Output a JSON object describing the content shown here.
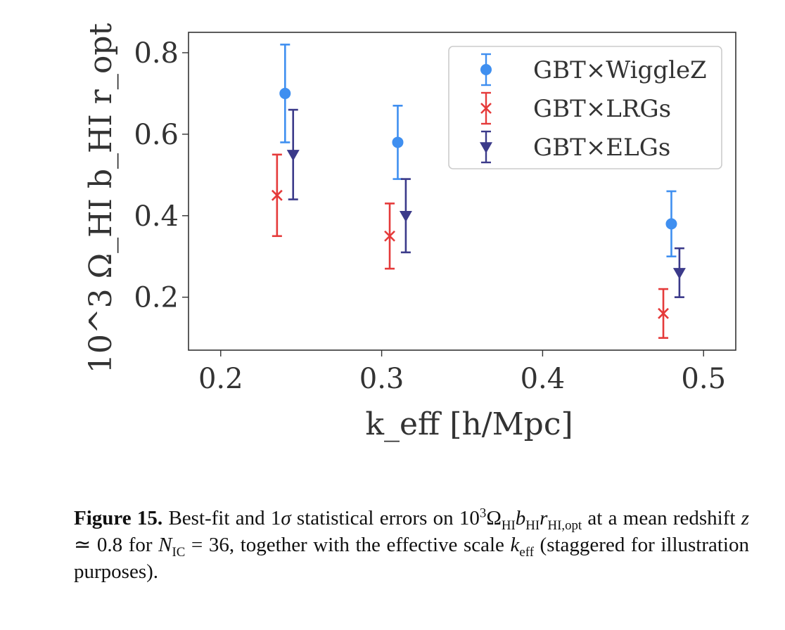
{
  "chart_data": {
    "type": "scatter",
    "title": "",
    "xlabel": "k_eff [h/Mpc]",
    "ylabel": "10^3 Ω_HI b_HI r_opt",
    "xlim": [
      0.18,
      0.52
    ],
    "ylim": [
      0.07,
      0.85
    ],
    "x_ticks": [
      0.2,
      0.3,
      0.4,
      0.5
    ],
    "x_tick_labels": [
      "0.2",
      "0.3",
      "0.4",
      "0.5"
    ],
    "y_ticks": [
      0.2,
      0.4,
      0.6,
      0.8
    ],
    "y_tick_labels": [
      "0.2",
      "0.4",
      "0.6",
      "0.8"
    ],
    "grid": false,
    "legend_position": "top-right",
    "series": [
      {
        "name": "GBT×WiggleZ",
        "color": "#3f8ff0",
        "marker": "circle",
        "x": [
          0.24,
          0.31,
          0.48
        ],
        "y": [
          0.7,
          0.58,
          0.38
        ],
        "yerr_low": [
          0.58,
          0.49,
          0.3
        ],
        "yerr_high": [
          0.82,
          0.67,
          0.46
        ]
      },
      {
        "name": "GBT×LRGs",
        "color": "#e53a3a",
        "marker": "x",
        "x": [
          0.235,
          0.305,
          0.475
        ],
        "y": [
          0.45,
          0.35,
          0.16
        ],
        "yerr_low": [
          0.35,
          0.27,
          0.1
        ],
        "yerr_high": [
          0.55,
          0.43,
          0.22
        ]
      },
      {
        "name": "GBT×ELGs",
        "color": "#3b3a8a",
        "marker": "triangle-down",
        "x": [
          0.245,
          0.315,
          0.485
        ],
        "y": [
          0.55,
          0.4,
          0.26
        ],
        "yerr_low": [
          0.44,
          0.31,
          0.2
        ],
        "yerr_high": [
          0.66,
          0.49,
          0.32
        ]
      }
    ]
  },
  "caption": {
    "label": "Figure 15.",
    "line1_a": "Best-fit and 1",
    "line1_sigma": "σ",
    "line1_b": " statistical errors on 10",
    "sup3": "3",
    "omega": "Ω",
    "sub_hi": "HI",
    "b": "b",
    "r": "r",
    "sub_hi_opt": "HI,opt",
    "line1_c": " at a mean redshift ",
    "z": "z",
    "line2_a": " ≃ 0.8 for ",
    "n": "N",
    "sub_ic": "IC",
    "line2_b": " = 36, together with the effective scale ",
    "k": "k",
    "sub_eff": "eff",
    "line2_c": " (staggered for illustration purposes)."
  }
}
